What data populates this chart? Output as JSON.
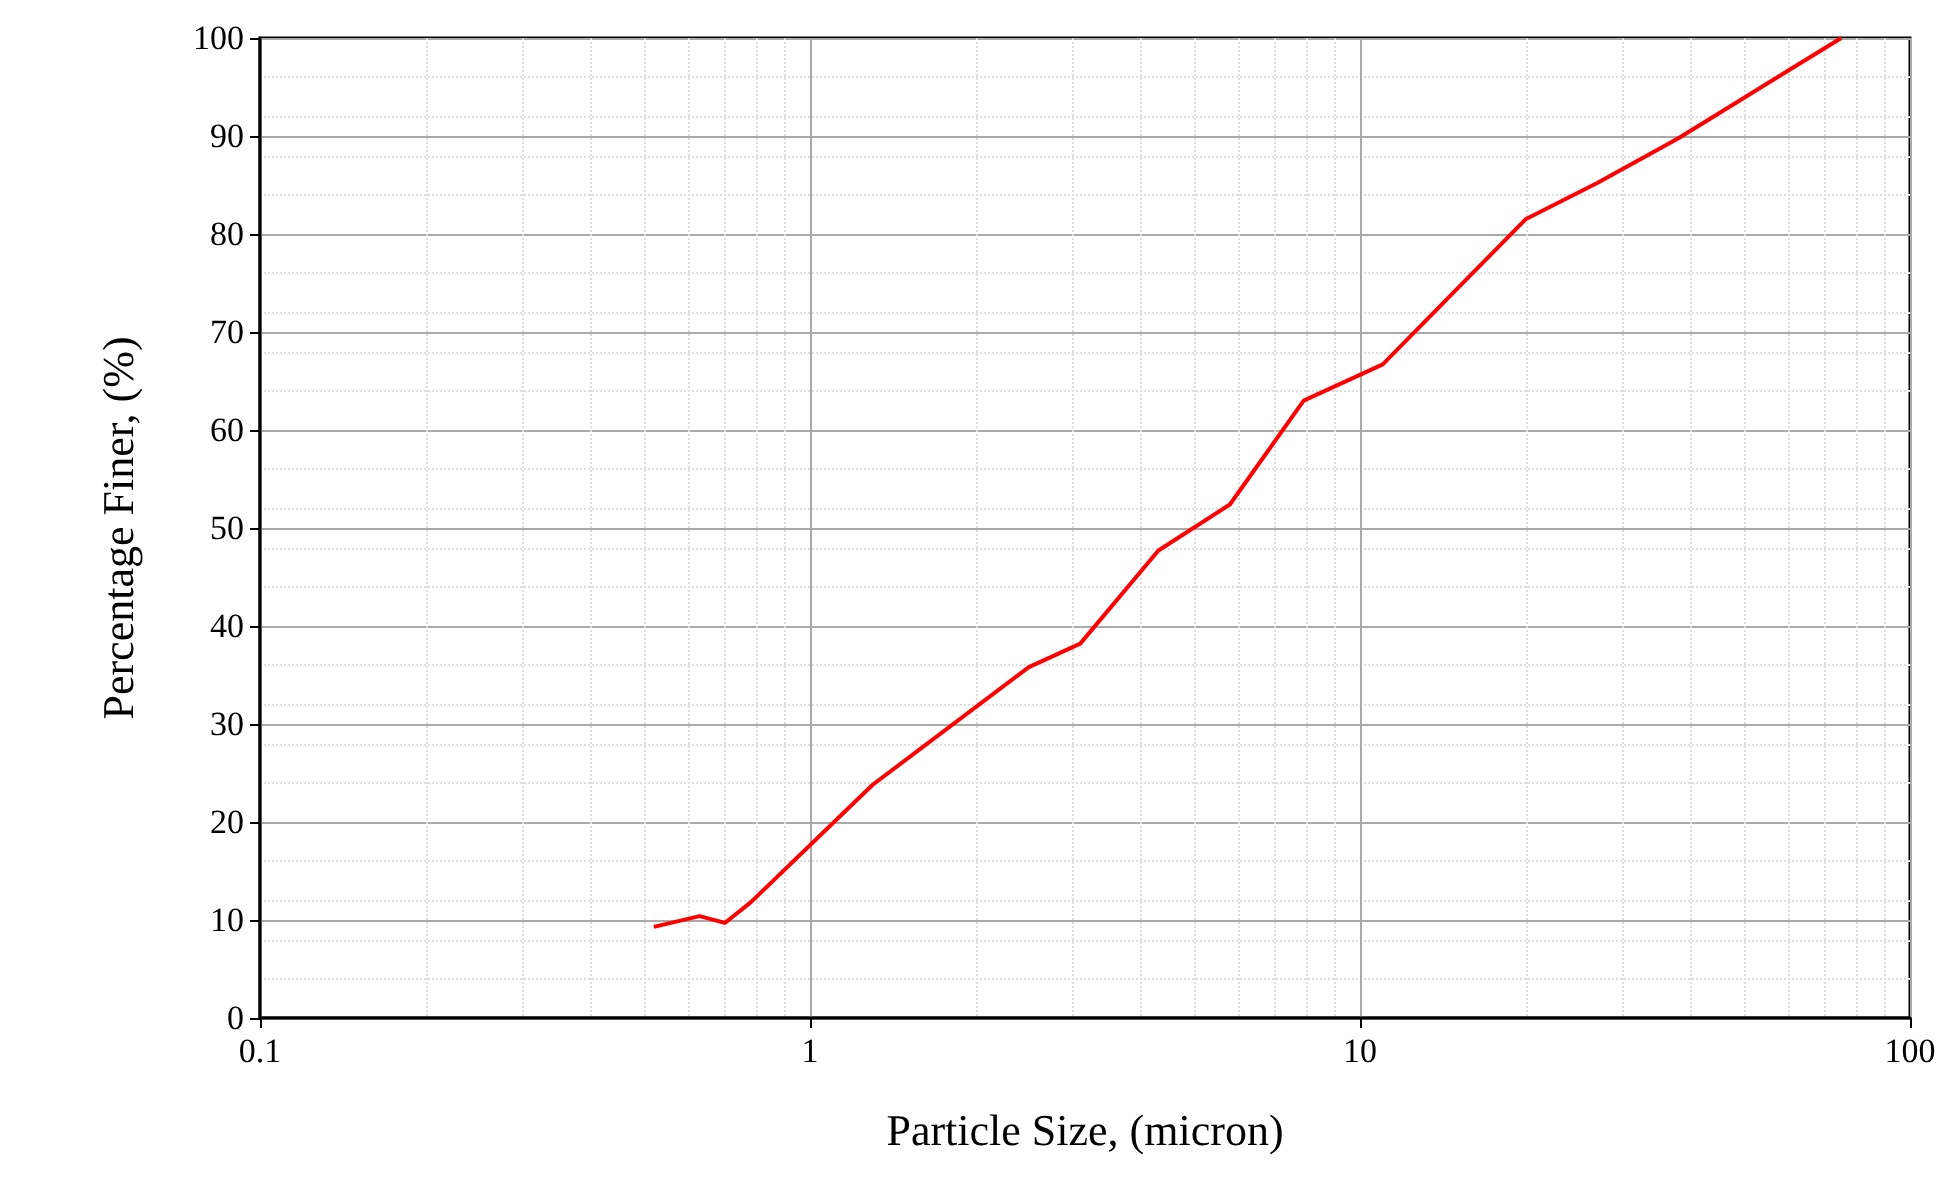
{
  "chart_data": {
    "type": "line",
    "xlabel": "Particle Size, (micron)",
    "ylabel": "Percentage Finer, (%)",
    "log": "x",
    "grid": true,
    "marker": "none",
    "line_style": "solid",
    "xlim": [
      0.1,
      100
    ],
    "xticks": [
      0.1,
      1,
      10,
      100
    ],
    "ylim": [
      0,
      100
    ],
    "yticks": [
      0,
      10,
      20,
      30,
      40,
      50,
      60,
      70,
      80,
      90,
      100
    ],
    "x": [
      0.52,
      0.63,
      0.7,
      0.78,
      1.3,
      2.5,
      3.1,
      4.3,
      5.8,
      7.9,
      11,
      20,
      27,
      38,
      75
    ],
    "series": [
      {
        "color": "#ff0000",
        "values": [
          9.3,
          10.4,
          9.7,
          11.8,
          23.8,
          35.8,
          38.2,
          47.7,
          52.4,
          63,
          66.7,
          81.5,
          85.2,
          89.8,
          100
        ]
      }
    ]
  }
}
